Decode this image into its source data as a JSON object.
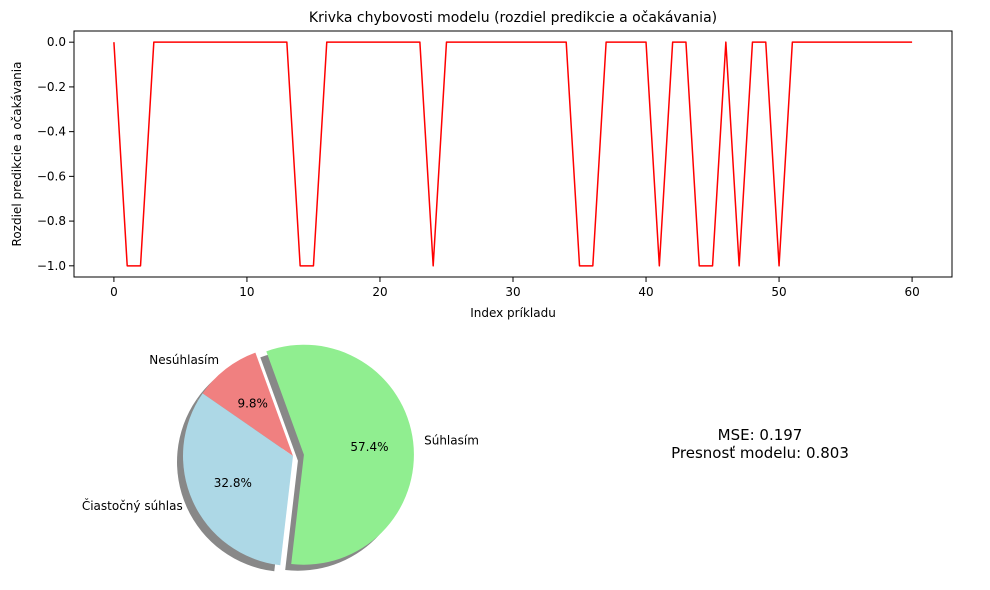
{
  "chart_data": [
    {
      "type": "line",
      "title": "Krivka chybovosti modelu (rozdiel predikcie a očakávania)",
      "xlabel": "Index príkladu",
      "ylabel": "Rozdiel predikcie a očakávania",
      "xlim": [
        -3,
        63
      ],
      "ylim": [
        -1.05,
        0.05
      ],
      "xticks": [
        0,
        10,
        20,
        30,
        40,
        50,
        60
      ],
      "yticks": [
        0.0,
        -0.2,
        -0.4,
        -0.6,
        -0.8,
        -1.0
      ],
      "ytick_labels": [
        "0.0",
        "−0.2",
        "−0.4",
        "−0.6",
        "−0.8",
        "−1.0"
      ],
      "grid": false,
      "series": [
        {
          "color": "#ff0000",
          "x": [
            0,
            1,
            2,
            3,
            4,
            5,
            6,
            7,
            8,
            9,
            10,
            11,
            12,
            13,
            14,
            15,
            16,
            17,
            18,
            19,
            20,
            21,
            22,
            23,
            24,
            25,
            26,
            27,
            28,
            29,
            30,
            31,
            32,
            33,
            34,
            35,
            36,
            37,
            38,
            39,
            40,
            41,
            42,
            43,
            44,
            45,
            46,
            47,
            48,
            49,
            50,
            51,
            52,
            53,
            54,
            55,
            56,
            57,
            58,
            59,
            60
          ],
          "y": [
            0,
            -1,
            -1,
            0,
            0,
            0,
            0,
            0,
            0,
            0,
            0,
            0,
            0,
            0,
            -1,
            -1,
            0,
            0,
            0,
            0,
            0,
            0,
            0,
            0,
            -1,
            0,
            0,
            0,
            0,
            0,
            0,
            0,
            0,
            0,
            0,
            -1,
            -1,
            0,
            0,
            0,
            0,
            -1,
            0,
            0,
            -1,
            -1,
            0,
            -1,
            0,
            0,
            -1,
            0,
            0,
            0,
            0,
            0,
            0,
            0,
            0,
            0,
            0
          ]
        }
      ]
    },
    {
      "type": "pie",
      "categories": [
        "Nesúhlasím",
        "Čiastočný súhlas",
        "Súhlasím"
      ],
      "values": [
        9.8,
        32.8,
        57.4
      ],
      "labels": [
        "9.8%",
        "32.8%",
        "57.4%"
      ],
      "colors": [
        "#f08080",
        "#add8e6",
        "#90ee90"
      ],
      "explode": [
        0,
        0,
        0.1
      ],
      "shadow": true,
      "start_angle_deg": 110
    }
  ],
  "metrics": {
    "mse": "MSE: 0.197",
    "accuracy": "Presnosť modelu: 0.803"
  }
}
